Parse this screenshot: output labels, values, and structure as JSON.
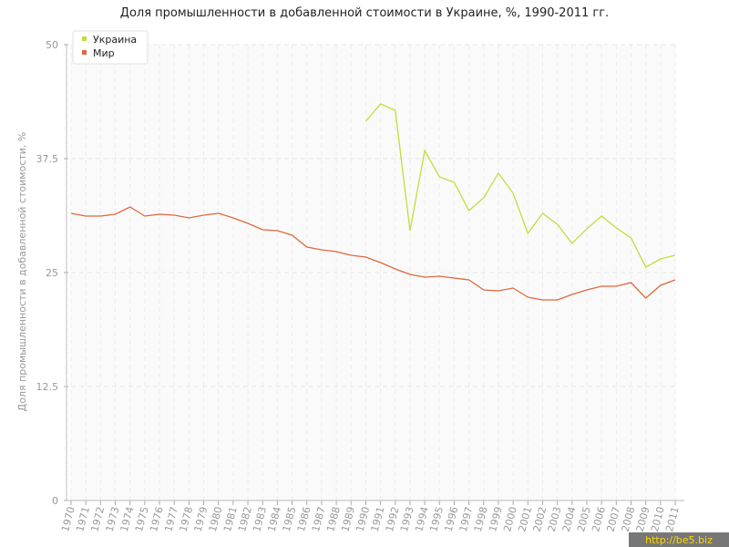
{
  "chart_data": {
    "type": "line",
    "title": "Доля промышленности в добавленной стоимости в Украине, %, 1990-2011 гг.",
    "y_label": "Доля промышленности в добавленной стоимости, %",
    "watermark": "http://be5.biz",
    "x": [
      1970,
      1971,
      1972,
      1973,
      1974,
      1975,
      1976,
      1977,
      1978,
      1979,
      1980,
      1981,
      1982,
      1983,
      1984,
      1985,
      1986,
      1987,
      1988,
      1989,
      1990,
      1991,
      1992,
      1993,
      1994,
      1995,
      1996,
      1997,
      1998,
      1999,
      2000,
      2001,
      2002,
      2003,
      2004,
      2005,
      2006,
      2007,
      2008,
      2009,
      2010,
      2011
    ],
    "xlim": [
      1970,
      2011
    ],
    "series": [
      {
        "name": "Украина",
        "color": "#c5dc3c",
        "values": [
          null,
          null,
          null,
          null,
          null,
          null,
          null,
          null,
          null,
          null,
          null,
          null,
          null,
          null,
          null,
          null,
          null,
          null,
          null,
          null,
          41.6,
          43.5,
          42.8,
          29.6,
          38.4,
          35.5,
          34.9,
          31.8,
          33.2,
          35.9,
          33.7,
          29.3,
          31.5,
          30.3,
          28.2,
          29.8,
          31.2,
          29.9,
          28.8,
          25.6,
          26.5,
          26.9
        ]
      },
      {
        "name": "Мир",
        "color": "#e0683c",
        "values": [
          31.5,
          31.2,
          31.2,
          31.4,
          32.2,
          31.2,
          31.4,
          31.3,
          31.0,
          31.3,
          31.5,
          31.0,
          30.4,
          29.7,
          29.6,
          29.1,
          27.8,
          27.5,
          27.3,
          26.9,
          26.7,
          26.1,
          25.4,
          24.8,
          24.5,
          24.6,
          24.4,
          24.2,
          23.1,
          23.0,
          23.3,
          22.3,
          22.0,
          22.0,
          22.6,
          23.1,
          23.5,
          23.5,
          23.9,
          22.2,
          23.6,
          24.2
        ]
      }
    ],
    "ylim": [
      0,
      50
    ],
    "yticks": [
      0,
      12.5,
      25,
      37.5,
      50
    ],
    "grid": true,
    "legend": "top-left"
  }
}
